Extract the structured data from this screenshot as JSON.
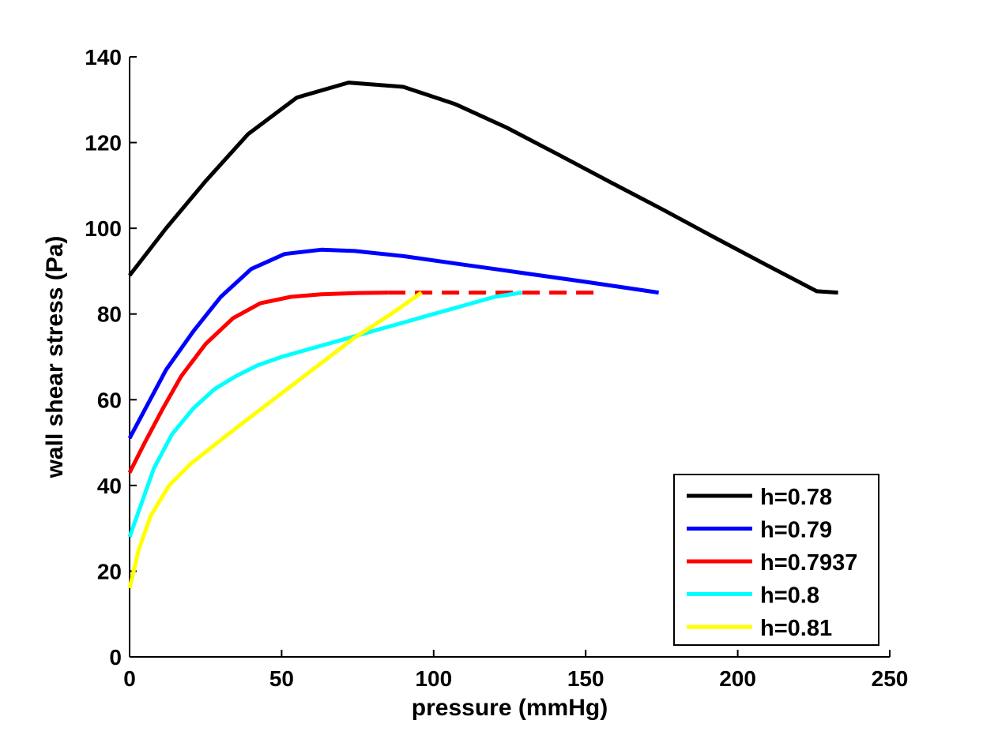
{
  "chart_data": {
    "type": "line",
    "title": "",
    "xlabel": "pressure (mmHg)",
    "ylabel": "wall shear stress (Pa)",
    "xlim": [
      0,
      250
    ],
    "ylim": [
      0,
      140
    ],
    "xticks": [
      0,
      50,
      100,
      150,
      200,
      250
    ],
    "yticks": [
      0,
      20,
      40,
      60,
      80,
      100,
      120,
      140
    ],
    "grid": false,
    "legend_position": "bottom-right",
    "series": [
      {
        "name": "h=0.78",
        "color": "#000000",
        "dashed": false,
        "x": [
          0,
          12,
          25,
          39,
          55,
          72,
          90,
          107,
          124,
          141,
          158,
          175,
          192,
          209,
          226,
          233
        ],
        "y": [
          89,
          100,
          111,
          122,
          130.5,
          134,
          133,
          129,
          123.5,
          117.2,
          110.8,
          104.5,
          98,
          91.6,
          85.3,
          85
        ]
      },
      {
        "name": "h=0.79",
        "color": "#0000ff",
        "dashed": false,
        "x": [
          0,
          6,
          12,
          21,
          30,
          40,
          51,
          63,
          74,
          90,
          110,
          130,
          150,
          174
        ],
        "y": [
          51,
          59,
          67,
          76,
          84,
          90.5,
          94,
          95,
          94.7,
          93.5,
          91.5,
          89.5,
          87.5,
          85
        ]
      },
      {
        "name": "h=0.7937",
        "color": "#ff0000",
        "dashed": false,
        "x": [
          0,
          5,
          11,
          17,
          25,
          34,
          43,
          53,
          63,
          75,
          85
        ],
        "y": [
          43,
          50,
          58,
          65.5,
          73,
          79,
          82.5,
          84,
          84.6,
          84.9,
          85
        ]
      },
      {
        "name": "h=0.7937 (dashed)",
        "color": "#ff0000",
        "dashed": true,
        "x": [
          85,
          100,
          125,
          154
        ],
        "y": [
          85,
          85,
          85,
          85
        ]
      },
      {
        "name": "h=0.8",
        "color": "#00ffff",
        "dashed": false,
        "x": [
          0,
          4,
          8,
          14,
          21,
          28,
          35,
          42,
          50,
          60,
          70,
          80,
          90,
          100,
          110,
          120,
          129
        ],
        "y": [
          28,
          36,
          44,
          52,
          58,
          62.5,
          65.5,
          68,
          70,
          72,
          74,
          76,
          78,
          80,
          82,
          84,
          85
        ]
      },
      {
        "name": "h=0.81",
        "color": "#ffff00",
        "dashed": false,
        "x": [
          0,
          3,
          7,
          13,
          20,
          28,
          38,
          50,
          62,
          74,
          86,
          96
        ],
        "y": [
          16,
          25,
          33,
          40,
          45,
          49.5,
          55,
          61.5,
          68,
          74.5,
          80,
          85
        ]
      }
    ],
    "legend": [
      {
        "label": "h=0.78",
        "color": "#000000"
      },
      {
        "label": "h=0.79",
        "color": "#0000ff"
      },
      {
        "label": "h=0.7937",
        "color": "#ff0000"
      },
      {
        "label": "h=0.8",
        "color": "#00ffff"
      },
      {
        "label": "h=0.81",
        "color": "#ffff00"
      }
    ]
  }
}
